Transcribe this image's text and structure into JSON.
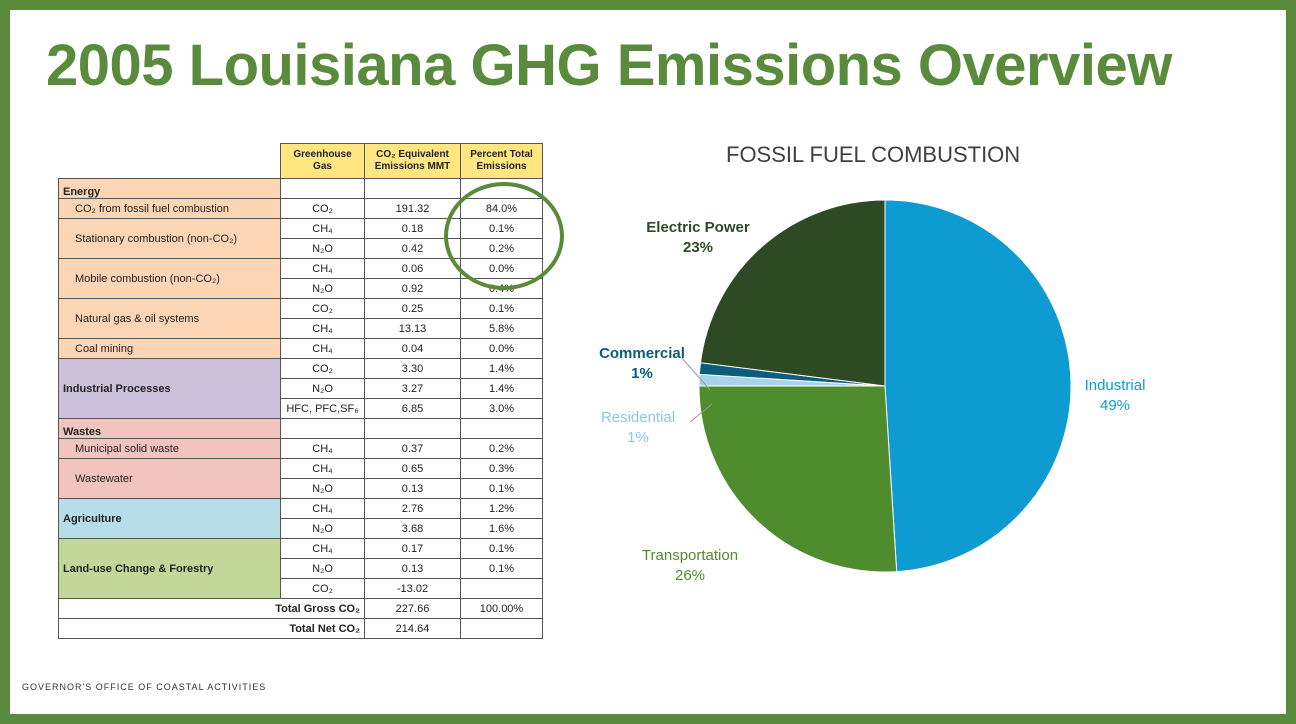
{
  "slide": {
    "title": "2005 Louisiana GHG Emissions Overview",
    "footer": "GOVERNOR'S OFFICE OF COASTAL ACTIVITIES"
  },
  "table": {
    "headers": [
      "Greenhouse Gas",
      "CO₂ Equivalent Emissions MMT",
      "Percent Total Emissions"
    ],
    "rows": [
      {
        "category": "Energy",
        "cat_label": "Energy",
        "gas": "",
        "value": "",
        "percent": ""
      },
      {
        "category": "Energy",
        "label": "CO₂ from fossil fuel combustion",
        "gas": "CO₂",
        "value": "191.32",
        "percent": "84.0%"
      },
      {
        "category": "Energy",
        "label": "Stationary combustion (non-CO₂)",
        "gas": "CH₄",
        "value": "0.18",
        "percent": "0.1%"
      },
      {
        "category": "Energy",
        "gas": "N₂O",
        "value": "0.42",
        "percent": "0.2%"
      },
      {
        "category": "Energy",
        "label": "Mobile combustion (non-CO₂)",
        "gas": "CH₄",
        "value": "0.06",
        "percent": "0.0%"
      },
      {
        "category": "Energy",
        "gas": "N₂O",
        "value": "0.92",
        "percent": "0.4%"
      },
      {
        "category": "Energy",
        "label": "Natural gas & oil systems",
        "gas": "CO₂",
        "value": "0.25",
        "percent": "0.1%"
      },
      {
        "category": "Energy",
        "gas": "CH₄",
        "value": "13.13",
        "percent": "5.8%"
      },
      {
        "category": "Energy",
        "label": "Coal mining",
        "gas": "CH₄",
        "value": "0.04",
        "percent": "0.0%"
      },
      {
        "category": "Industrial",
        "cat_label": "Industrial Processes",
        "gas": "CO₂",
        "value": "3.30",
        "percent": "1.4%"
      },
      {
        "category": "Industrial",
        "gas": "N₂O",
        "value": "3.27",
        "percent": "1.4%"
      },
      {
        "category": "Industrial",
        "gas": "HFC, PFC,SF₆",
        "value": "6.85",
        "percent": "3.0%"
      },
      {
        "category": "Wastes",
        "cat_label": "Wastes",
        "gas": "",
        "value": "",
        "percent": ""
      },
      {
        "category": "Wastes",
        "label": "Municipal solid waste",
        "gas": "CH₄",
        "value": "0.37",
        "percent": "0.2%"
      },
      {
        "category": "Wastes",
        "label": "Wastewater",
        "gas": "CH₄",
        "value": "0.65",
        "percent": "0.3%"
      },
      {
        "category": "Wastes",
        "gas": "N₂O",
        "value": "0.13",
        "percent": "0.1%"
      },
      {
        "category": "Agriculture",
        "cat_label": "Agriculture",
        "gas": "CH₄",
        "value": "2.76",
        "percent": "1.2%"
      },
      {
        "category": "Agriculture",
        "gas": "N₂O",
        "value": "3.68",
        "percent": "1.6%"
      },
      {
        "category": "Land",
        "cat_label": "Land-use Change & Forestry",
        "gas": "CH₄",
        "value": "0.17",
        "percent": "0.1%"
      },
      {
        "category": "Land",
        "gas": "N₂O",
        "value": "0.13",
        "percent": "0.1%"
      },
      {
        "category": "Land",
        "gas": "CO₂",
        "value": "-13.02",
        "percent": ""
      }
    ],
    "totals": [
      {
        "label": "Total Gross CO₂",
        "value": "227.66",
        "percent": "100.00%"
      },
      {
        "label": "Total Net CO₂",
        "value": "214.64",
        "percent": ""
      }
    ],
    "category_colors": {
      "Energy": "#fcd5b4",
      "Industrial": "#ccc0da",
      "Wastes": "#f2c4c0",
      "Agriculture": "#b7dde8",
      "Land": "#c4d79b"
    },
    "highlight_color": "#5a8a3c"
  },
  "chart_data": {
    "type": "pie",
    "title": "FOSSIL FUEL COMBUSTION",
    "slices": [
      {
        "name": "Industrial",
        "value": 49,
        "label": "49%",
        "color": "#0e9bd2"
      },
      {
        "name": "Transportation",
        "value": 26,
        "label": "26%",
        "color": "#4e8c2e"
      },
      {
        "name": "Residential",
        "value": 1,
        "label": "1%",
        "color": "#a8d4ea"
      },
      {
        "name": "Commercial",
        "value": 1,
        "label": "1%",
        "color": "#0c5c7c"
      },
      {
        "name": "Electric Power",
        "value": 23,
        "label": "23%",
        "color": "#2d4a24"
      }
    ],
    "label_colors": {
      "Industrial": "#0e9bd2",
      "Transportation": "#4e8c2e",
      "Residential": "#8cc8e4",
      "Commercial": "#0c5c7c",
      "Electric Power": "#2d4a24"
    }
  }
}
